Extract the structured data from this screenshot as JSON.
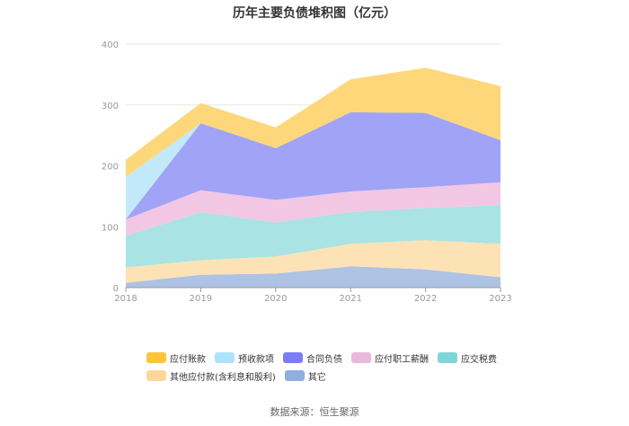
{
  "chart_data": {
    "type": "area",
    "stacked": true,
    "title": "历年主要负债堆积图（亿元）",
    "xlabel": "",
    "ylabel": "",
    "x": [
      "2018",
      "2019",
      "2020",
      "2021",
      "2022",
      "2023"
    ],
    "yticks": [
      "0",
      "100",
      "200",
      "300",
      "400"
    ],
    "ylim": [
      0,
      400
    ],
    "grid": true,
    "legend_position": "bottom",
    "series": [
      {
        "name": "其它",
        "color": "#aec2e4",
        "values": [
          8,
          21,
          23,
          35,
          30,
          17
        ]
      },
      {
        "name": "其他应付款(含利息和股利)",
        "color": "#fde2b6",
        "values": [
          25,
          24,
          28,
          37,
          48,
          55
        ]
      },
      {
        "name": "应交税费",
        "color": "#a9e3e3",
        "values": [
          52,
          79,
          56,
          52,
          53,
          63
        ]
      },
      {
        "name": "应付职工薪酬",
        "color": "#f1c7e4",
        "values": [
          27,
          36,
          37,
          34,
          34,
          38
        ]
      },
      {
        "name": "合同负债",
        "color": "#a0a3f6",
        "values": [
          0,
          110,
          85,
          130,
          122,
          69
        ]
      },
      {
        "name": "预收款项",
        "color": "#c2e9f9",
        "values": [
          70,
          0,
          0,
          0,
          0,
          0
        ]
      },
      {
        "name": "应付账款",
        "color": "#fed77b",
        "values": [
          28,
          33,
          34,
          54,
          74,
          89
        ]
      }
    ]
  },
  "legend": {
    "row1": [
      {
        "name": "应付账款",
        "color": "#fdc43c"
      },
      {
        "name": "预收款项",
        "color": "#aee3fa"
      },
      {
        "name": "合同负债",
        "color": "#7b7ef2"
      },
      {
        "name": "应付职工薪酬",
        "color": "#eab8dc"
      },
      {
        "name": "应交税费",
        "color": "#7fd6d6"
      }
    ],
    "row2": [
      {
        "name": "其他应付款(含利息和股利)",
        "color": "#fdd69a"
      },
      {
        "name": "其它",
        "color": "#90aede"
      }
    ]
  },
  "source": "数据来源：恒生聚源"
}
